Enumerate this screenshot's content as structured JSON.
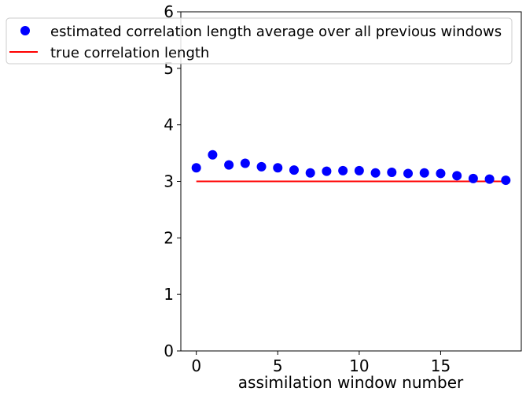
{
  "chart_data": {
    "type": "scatter",
    "xlabel": "assimilation window number",
    "ylabel": "",
    "xlim": [
      -0.95,
      19.95
    ],
    "ylim": [
      0,
      6
    ],
    "x_ticks": [
      0,
      5,
      10,
      15
    ],
    "y_ticks": [
      0,
      1,
      2,
      3,
      4,
      5,
      6
    ],
    "grid": false,
    "legend_position": "upper-left",
    "series": [
      {
        "name": "estimated correlation length average over all previous windows",
        "kind": "markers",
        "color": "#0000ff",
        "x": [
          0,
          1,
          2,
          3,
          4,
          5,
          6,
          7,
          8,
          9,
          10,
          11,
          12,
          13,
          14,
          15,
          16,
          17,
          18,
          19
        ],
        "y": [
          3.24,
          3.47,
          3.29,
          3.32,
          3.26,
          3.24,
          3.2,
          3.15,
          3.18,
          3.19,
          3.19,
          3.15,
          3.16,
          3.14,
          3.15,
          3.14,
          3.1,
          3.05,
          3.04,
          3.02
        ]
      },
      {
        "name": "true correlation length",
        "kind": "line",
        "color": "#ff0000",
        "x": [
          0,
          19
        ],
        "y": [
          3,
          3
        ]
      }
    ]
  }
}
